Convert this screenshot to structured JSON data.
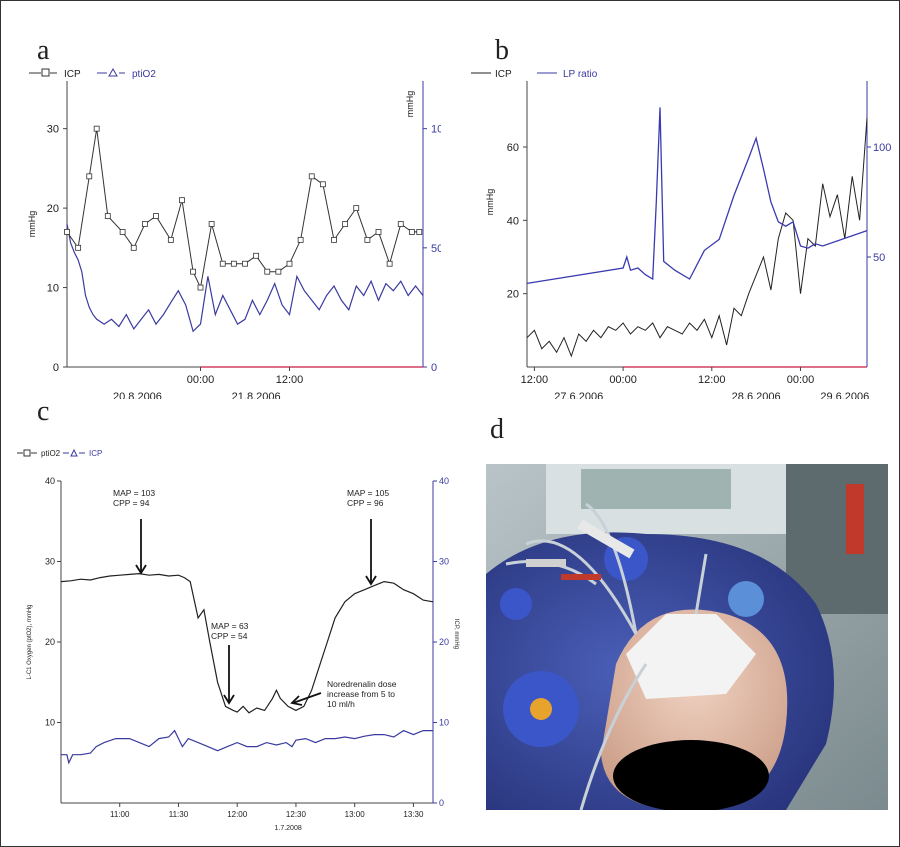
{
  "panels": {
    "a": "a",
    "b": "b",
    "c": "c",
    "d": "d"
  },
  "chart_data": [
    {
      "id": "a",
      "type": "line",
      "legend": [
        "ICP",
        "ptiO2"
      ],
      "ylabel_left": "mmHg",
      "ylabel_right": "mmHg",
      "ylim_left": [
        0,
        36
      ],
      "ylim_right": [
        0,
        120
      ],
      "yticks_left": [
        0,
        10,
        20,
        30
      ],
      "yticks_right": [
        0,
        50,
        100
      ],
      "xlim_hours": [
        0,
        48
      ],
      "xtick_labels": [
        {
          "h": 18,
          "text": "00:00"
        },
        {
          "h": 30,
          "text": "12:00"
        }
      ],
      "date_labels": [
        {
          "h": 9.5,
          "text": "20.8.2006"
        },
        {
          "h": 25.5,
          "text": "21.8.2006"
        }
      ],
      "series": [
        {
          "name": "ICP",
          "axis": "left",
          "color": "#333333",
          "marker": "square",
          "x": [
            0,
            1.5,
            3,
            4,
            5.5,
            7.5,
            9,
            10.5,
            12,
            14,
            15.5,
            17,
            18,
            19.5,
            21,
            22.5,
            24,
            25.5,
            27,
            28.5,
            30,
            31.5,
            33,
            34.5,
            36,
            37.5,
            39,
            40.5,
            42,
            43.5,
            45,
            46.5,
            47.5
          ],
          "y": [
            17,
            15,
            24,
            30,
            19,
            17,
            15,
            18,
            19,
            16,
            21,
            12,
            10,
            18,
            13,
            13,
            13,
            14,
            12,
            12,
            13,
            16,
            24,
            23,
            16,
            18,
            20,
            16,
            17,
            13,
            18,
            17,
            17
          ]
        },
        {
          "name": "ptiO2",
          "axis": "right",
          "color": "#3a3aa0",
          "marker": "none",
          "x": [
            0,
            0.5,
            1,
            1.5,
            2,
            2.5,
            3,
            3.5,
            4,
            5,
            6,
            7,
            8,
            9,
            10,
            11,
            12,
            13,
            14,
            15,
            16,
            17,
            18,
            19,
            20,
            21,
            22,
            23,
            24,
            25,
            26,
            27,
            28,
            29,
            30,
            31,
            32,
            33,
            34,
            35,
            36,
            37,
            38,
            39,
            40,
            41,
            42,
            43,
            44,
            45,
            46,
            47,
            48
          ],
          "y": [
            60,
            52,
            48,
            45,
            40,
            30,
            25,
            22,
            20,
            18,
            20,
            17,
            22,
            16,
            20,
            24,
            18,
            22,
            27,
            32,
            26,
            15,
            18,
            38,
            22,
            30,
            24,
            18,
            20,
            28,
            22,
            28,
            35,
            26,
            22,
            38,
            32,
            28,
            24,
            30,
            34,
            28,
            24,
            34,
            30,
            36,
            28,
            35,
            32,
            36,
            30,
            34,
            30
          ]
        }
      ]
    },
    {
      "id": "b",
      "type": "line",
      "legend": [
        "ICP",
        "LP ratio"
      ],
      "ylabel_left": "mmHg",
      "ylim_left": [
        0,
        78
      ],
      "ylim_right": [
        0,
        130
      ],
      "yticks_left": [
        20,
        40,
        60
      ],
      "yticks_right": [
        50,
        100
      ],
      "xlim_hours": [
        0,
        62
      ],
      "xtick_labels": [
        {
          "h": 1,
          "text": "12:00"
        },
        {
          "h": 13,
          "text": "00:00"
        },
        {
          "h": 25,
          "text": "12:00"
        },
        {
          "h": 37,
          "text": "00:00"
        }
      ],
      "date_labels": [
        {
          "h": 7,
          "text": "27.6.2006"
        },
        {
          "h": 31,
          "text": "28.6.2006"
        },
        {
          "h": 43,
          "text": "29.6.2006"
        }
      ],
      "series": [
        {
          "name": "ICP",
          "axis": "left",
          "color": "#222222",
          "x": [
            0,
            1,
            2,
            3,
            4,
            5,
            6,
            7,
            8,
            9,
            10,
            11,
            12,
            13,
            14,
            15,
            16,
            17,
            18,
            19,
            20,
            21,
            22,
            23,
            24,
            25,
            26,
            27,
            28,
            29,
            30,
            31,
            32,
            33,
            34,
            35,
            36,
            37,
            38,
            39,
            40,
            41,
            42,
            43,
            44,
            45,
            46
          ],
          "y": [
            8,
            10,
            5,
            7,
            4,
            8,
            3,
            9,
            7,
            10,
            8,
            11,
            10,
            12,
            9,
            11,
            10,
            12,
            8,
            11,
            10,
            9,
            12,
            10,
            13,
            8,
            14,
            6,
            16,
            14,
            20,
            25,
            30,
            21,
            35,
            42,
            40,
            20,
            35,
            33,
            50,
            41,
            47,
            35,
            52,
            40,
            68
          ]
        },
        {
          "name": "LP ratio",
          "axis": "right",
          "color": "#3a3ab0",
          "x": [
            0,
            13,
            13.5,
            14,
            15,
            16,
            17,
            17.5,
            18,
            18.5,
            20,
            22,
            24,
            26,
            28,
            30,
            31,
            32,
            33,
            34,
            35,
            36,
            37,
            38,
            39,
            40,
            46
          ],
          "y": [
            38,
            45,
            50,
            44,
            45,
            42,
            40,
            75,
            118,
            48,
            44,
            40,
            53,
            58,
            78,
            95,
            104,
            90,
            75,
            66,
            64,
            66,
            55,
            54,
            56,
            55,
            62
          ]
        }
      ]
    },
    {
      "id": "c",
      "type": "line",
      "legend": [
        "ptiO2",
        "ICP"
      ],
      "ylabel_left": "L-C1 Oxygen (ptO2), mmHg",
      "ylabel_right": "ICP, mmHg",
      "ylim_left": [
        0,
        40
      ],
      "ylim_right": [
        0,
        40
      ],
      "yticks_left": [
        10,
        20,
        30,
        40
      ],
      "yticks_right": [
        0,
        10,
        20,
        30,
        40
      ],
      "xlim_min": [
        0,
        180
      ],
      "xtick_labels": [
        {
          "m": 30,
          "text": "11:00"
        },
        {
          "m": 60,
          "text": "11:30"
        },
        {
          "m": 90,
          "text": "12:00"
        },
        {
          "m": 120,
          "text": "12:30"
        },
        {
          "m": 150,
          "text": "13:00"
        },
        {
          "m": 180,
          "text": "13:30"
        }
      ],
      "date_labels": [
        {
          "m": 116,
          "text": "1.7.2008"
        }
      ],
      "annotations": [
        {
          "lines": [
            "MAP = 103",
            "CPP = 94"
          ]
        },
        {
          "lines": [
            "MAP = 63",
            "CPP = 54"
          ]
        },
        {
          "lines": [
            "MAP = 105",
            "CPP = 96"
          ]
        },
        {
          "lines": [
            "Noredrenalin dose",
            "increase from 5 to",
            "10 ml/h"
          ]
        }
      ],
      "series": [
        {
          "name": "ptiO2",
          "axis": "left",
          "color": "#222222",
          "x": [
            0,
            5,
            10,
            15,
            20,
            25,
            30,
            35,
            40,
            45,
            50,
            55,
            60,
            63,
            66,
            70,
            73,
            76,
            80,
            84,
            88,
            90,
            93,
            96,
            100,
            104,
            108,
            110,
            112,
            116,
            120,
            124,
            128,
            132,
            136,
            140,
            145,
            150,
            155,
            160,
            165,
            170,
            175,
            180,
            185,
            190
          ],
          "y": [
            27.5,
            27.6,
            27.8,
            27.7,
            28,
            28.2,
            28.3,
            28.4,
            28.5,
            28.3,
            28.4,
            28.2,
            28.3,
            28,
            27.5,
            23,
            24,
            20,
            15,
            12,
            11.5,
            11.3,
            12,
            11.2,
            11.8,
            11.5,
            13,
            14,
            13,
            12,
            11.5,
            12,
            14,
            17,
            20,
            23,
            25,
            26,
            26.5,
            27,
            27.5,
            27.3,
            26.5,
            26,
            25.2,
            25
          ]
        },
        {
          "name": "ICP",
          "axis": "right",
          "color": "#3a3aa0",
          "x": [
            0,
            3,
            4,
            6,
            10,
            15,
            18,
            22,
            28,
            35,
            40,
            45,
            50,
            55,
            58,
            60,
            62,
            65,
            70,
            75,
            80,
            85,
            90,
            95,
            100,
            105,
            110,
            115,
            118,
            120,
            125,
            130,
            135,
            140,
            145,
            150,
            155,
            160,
            165,
            170,
            175,
            180,
            185,
            190
          ],
          "y": [
            6,
            6,
            5,
            6,
            6,
            6.2,
            7,
            7.5,
            8,
            8,
            7.5,
            7,
            8,
            8.2,
            9,
            8,
            7,
            8,
            7.5,
            7,
            6.5,
            7,
            7.5,
            7,
            7,
            7.5,
            7.2,
            7.5,
            7,
            7.8,
            8,
            7.5,
            8,
            8,
            8.2,
            8,
            8.3,
            8.5,
            8.5,
            8.2,
            9,
            8.5,
            9,
            9
          ]
        }
      ]
    }
  ],
  "colors": {
    "icp_a": "#333333",
    "blue": "#3a3aa0",
    "zero_line": "#d04060",
    "axis": "#444444"
  }
}
